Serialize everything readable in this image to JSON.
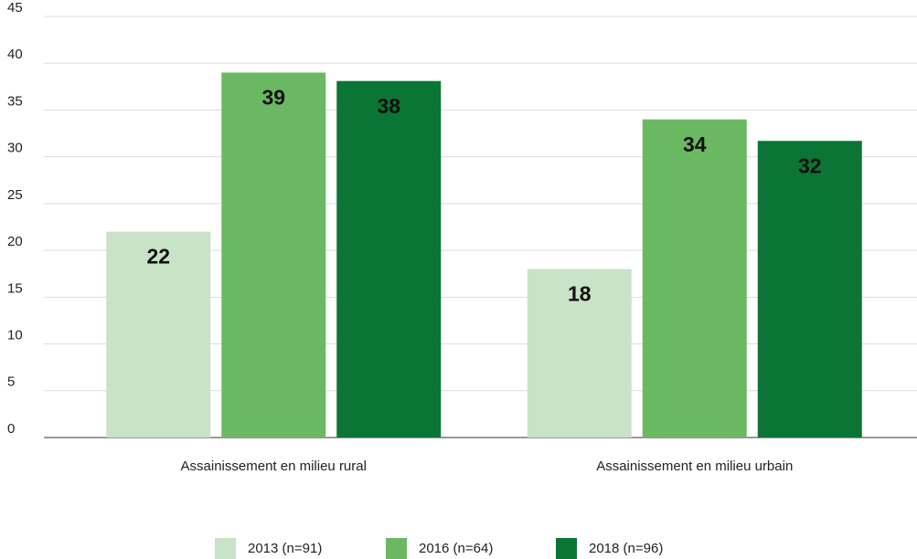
{
  "chart_data": {
    "type": "bar",
    "categories": [
      "Assainissement en milieu rural",
      "Assainissement en milieu urbain"
    ],
    "series": [
      {
        "name": "2013 (n=91)",
        "color": "#c8e3c8",
        "values": [
          22,
          18
        ],
        "value_labels": [
          "22",
          "18"
        ]
      },
      {
        "name": "2016 (n=64)",
        "color": "#6bb862",
        "values": [
          39,
          34
        ],
        "value_labels": [
          "39",
          "34"
        ]
      },
      {
        "name": "2018 (n=96)",
        "color": "#0b7535",
        "values": [
          38.1,
          31.7
        ],
        "value_labels": [
          "38",
          "32"
        ]
      }
    ],
    "ylim": [
      0,
      45
    ],
    "yticks": [
      0,
      5,
      10,
      15,
      20,
      25,
      30,
      35,
      40,
      45
    ],
    "grid": true,
    "legend": "bottom"
  }
}
